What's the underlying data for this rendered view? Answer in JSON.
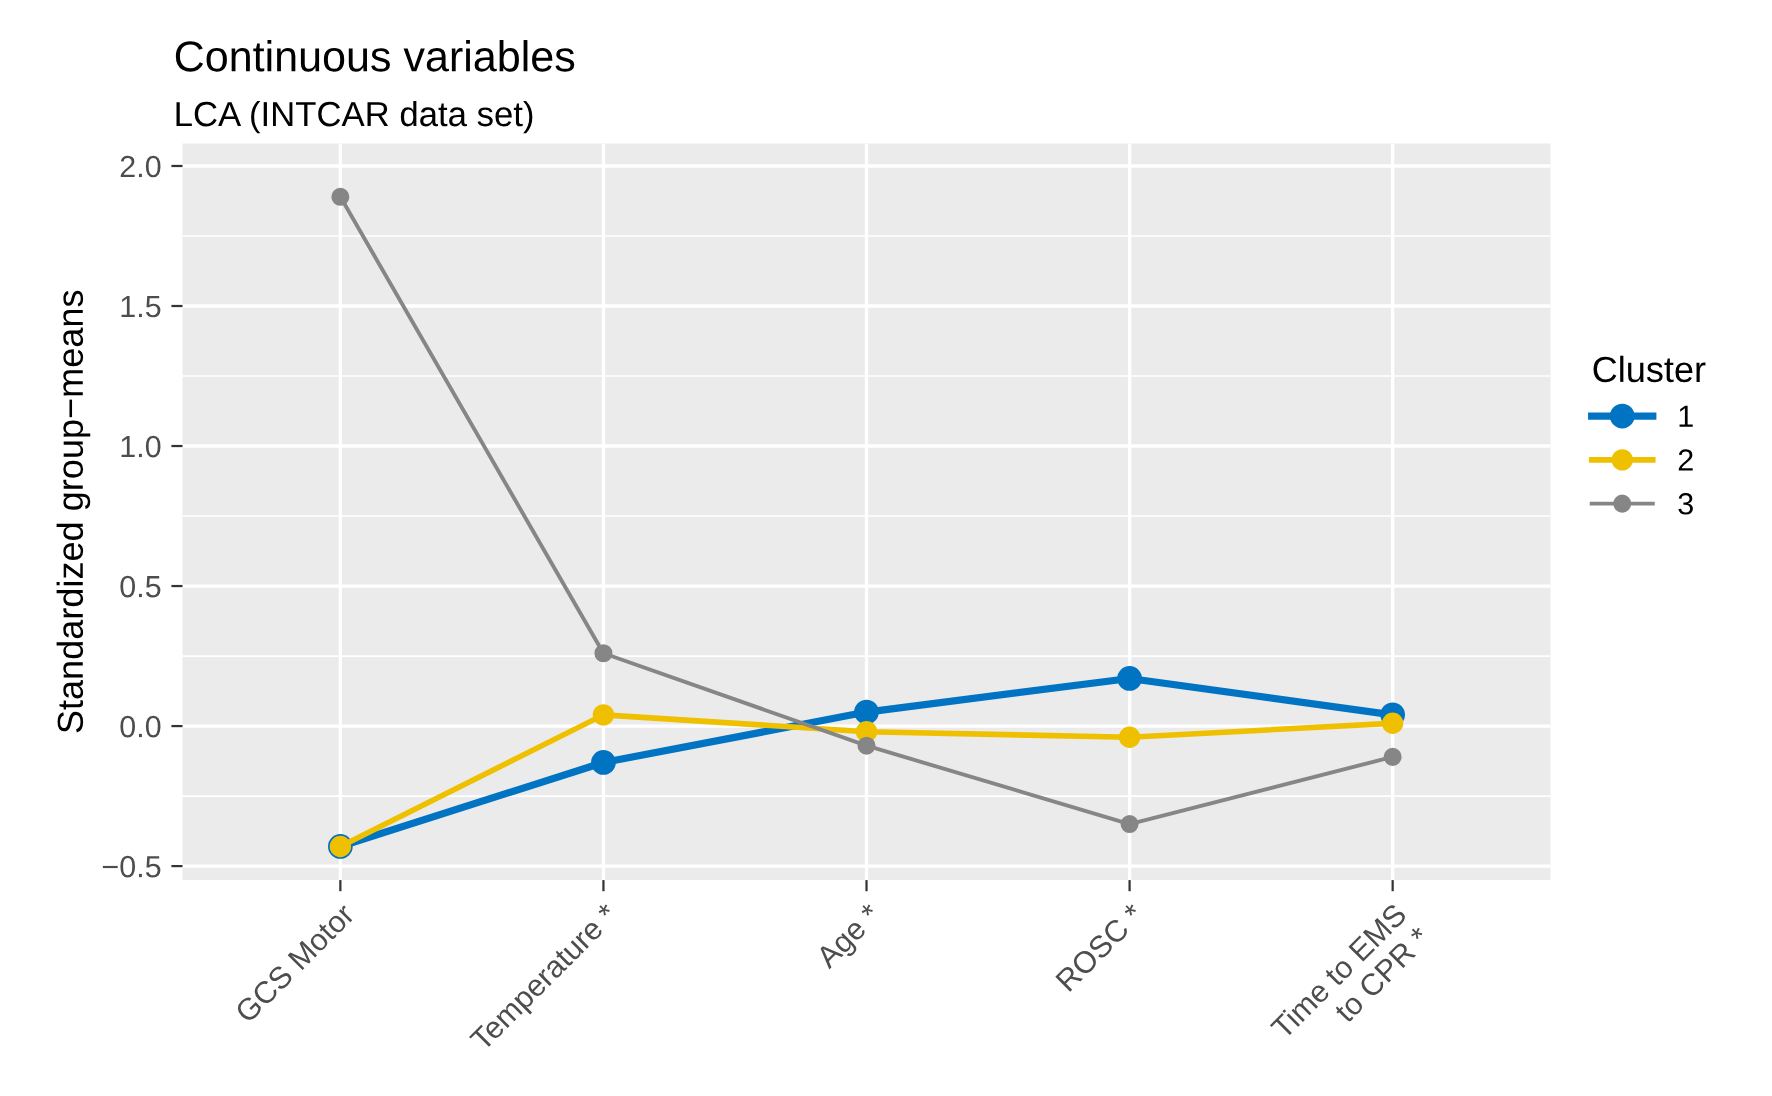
{
  "chart_data": {
    "type": "line",
    "title": "Continuous variables",
    "subtitle": "LCA (INTCAR data set)",
    "ylabel": "Standardized group−means",
    "legend_title": "Cluster",
    "categories": [
      "GCS Motor",
      "Temperature *",
      "Age *",
      "ROSC *",
      "Time to EMS\nto CPR *"
    ],
    "series": [
      {
        "name": "1",
        "color": "#0073c2",
        "values": [
          -0.43,
          -0.13,
          0.05,
          0.17,
          0.04
        ]
      },
      {
        "name": "2",
        "color": "#efc000",
        "values": [
          -0.43,
          0.04,
          -0.02,
          -0.04,
          0.01
        ]
      },
      {
        "name": "3",
        "color": "#868686",
        "values": [
          1.89,
          0.26,
          -0.07,
          -0.35,
          -0.11
        ]
      }
    ],
    "ylim": [
      -0.55,
      2.08
    ],
    "yticks": [
      {
        "value": -0.5,
        "label": "−0.5"
      },
      {
        "value": 0,
        "label": "0.0"
      },
      {
        "value": 0.5,
        "label": "0.5"
      },
      {
        "value": 1,
        "label": "1.0"
      },
      {
        "value": 1.5,
        "label": "1.5"
      },
      {
        "value": 2,
        "label": "2.0"
      }
    ],
    "grid": true,
    "legend": "right",
    "marker": "circle",
    "line_style": "solid"
  }
}
